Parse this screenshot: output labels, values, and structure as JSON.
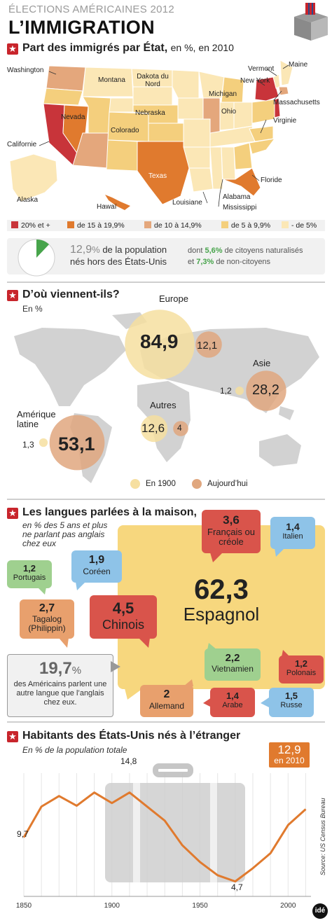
{
  "header": {
    "kicker": "ÉLECTIONS AMÉRICAINES 2012",
    "title": "L’IMMIGRATION"
  },
  "section1": {
    "title": "Part des immigrés par État,",
    "unit": "en %, en 2010",
    "states": {
      "washington": "Washington",
      "montana": "Montana",
      "dakota_nord": "Dakota du Nord",
      "vermont": "Vermont",
      "maine": "Maine",
      "new_york": "New York",
      "massachusetts": "Massachusetts",
      "michigan": "Michigan",
      "nevada": "Nevada",
      "nebraska": "Nebraska",
      "ohio": "Ohio",
      "virginie": "Virginie",
      "colorado": "Colorado",
      "california": "Californie",
      "texas": "Texas",
      "floride": "Floride",
      "alaska": "Alaska",
      "hawai": "Hawaï",
      "louisiane": "Louisiane",
      "alabama": "Alabama",
      "mississippi": "Mississippi"
    },
    "legend": [
      {
        "label": "20% et +",
        "color": "#c8343a"
      },
      {
        "label": "de 15 à 19,9%",
        "color": "#e07a2e"
      },
      {
        "label": "de 10 à 14,9%",
        "color": "#e4a77c"
      },
      {
        "label": "de 5 à 9,9%",
        "color": "#f4cf7d"
      },
      {
        "label": "- de 5%",
        "color": "#fbe7b6"
      }
    ],
    "summary": {
      "value": "12,9",
      "unit": "%",
      "text1": "de la population",
      "text2": "nés hors des États-Unis",
      "dont": "dont",
      "naturalized": "5,6%",
      "naturalized_text": "de citoyens naturalisés",
      "et": "et",
      "noncitizen": "7,3%",
      "noncitizen_text": "de non-citoyens"
    }
  },
  "section2": {
    "title": "D’où viennent-ils?",
    "unit": "En %",
    "regions": [
      {
        "name": "Europe",
        "y1900": "84,9",
        "today": "12,1"
      },
      {
        "name": "Asie",
        "y1900": "1,2",
        "today": "28,2"
      },
      {
        "name": "Autres",
        "y1900": "12,6",
        "today": "4"
      },
      {
        "name": "Amérique latine",
        "y1900": "1,3",
        "today": "53,1"
      }
    ],
    "legend_1900": "En 1900",
    "legend_today": "Aujourd’hui",
    "color_1900": "#f6dfa0",
    "color_today": "#e0a77f"
  },
  "section3": {
    "title": "Les langues parlées à la maison,",
    "sub": "en % des 5 ans et plus ne parlant pas anglais chez eux",
    "languages": [
      {
        "key": "espagnol",
        "value": "62,3",
        "name": "Espagnol",
        "color": "#f7d77e"
      },
      {
        "key": "francais",
        "value": "3,6",
        "name": "Français ou créole",
        "color": "#d9544b"
      },
      {
        "key": "italien",
        "value": "1,4",
        "name": "Italien",
        "color": "#8ec3e8"
      },
      {
        "key": "portugais",
        "value": "1,2",
        "name": "Portugais",
        "color": "#9fd08f"
      },
      {
        "key": "coreen",
        "value": "1,9",
        "name": "Coréen",
        "color": "#8ec3e8"
      },
      {
        "key": "tagalog",
        "value": "2,7",
        "name": "Tagalog (Philippin)",
        "color": "#e8a06d"
      },
      {
        "key": "chinois",
        "value": "4,5",
        "name": "Chinois",
        "color": "#d9544b"
      },
      {
        "key": "vietnamien",
        "value": "2,2",
        "name": "Vietnamien",
        "color": "#9fd08f"
      },
      {
        "key": "polonais",
        "value": "1,2",
        "name": "Polonais",
        "color": "#d9544b"
      },
      {
        "key": "allemand",
        "value": "2",
        "name": "Allemand",
        "color": "#e8a06d"
      },
      {
        "key": "arabe",
        "value": "1,4",
        "name": "Arabe",
        "color": "#d9544b"
      },
      {
        "key": "russe",
        "value": "1,5",
        "name": "Russe",
        "color": "#8ec3e8"
      }
    ],
    "note": {
      "value": "19,7",
      "unit": "%",
      "text": "des Américains parlent une autre langue que l’anglais chez eux."
    }
  },
  "section4": {
    "title": "Habitants des États-Unis nés à l’étranger",
    "sub": "En % de la population totale",
    "callout_value": "12,9",
    "callout_year": "en 2010",
    "label_start": "9,7",
    "label_peak": "14,8",
    "label_low": "4,7",
    "source": "Source: US Census Bureau",
    "logo": "idé"
  },
  "chart_data": {
    "type": "line",
    "title": "Habitants des États-Unis nés à l’étranger",
    "subtitle": "En % de la population totale",
    "x": [
      1850,
      1860,
      1870,
      1880,
      1890,
      1900,
      1910,
      1920,
      1930,
      1940,
      1950,
      1960,
      1970,
      1980,
      1990,
      2000,
      2010
    ],
    "y": [
      9.7,
      13.2,
      14.4,
      13.3,
      14.8,
      13.6,
      14.8,
      13.2,
      11.6,
      8.8,
      6.9,
      5.4,
      4.7,
      6.2,
      7.9,
      11.1,
      12.9
    ],
    "xticks": [
      "1850",
      "1900",
      "1950",
      "2000"
    ],
    "xlim": [
      1850,
      2013
    ],
    "ylim": [
      3,
      17
    ],
    "line_color": "#e07a2e"
  }
}
